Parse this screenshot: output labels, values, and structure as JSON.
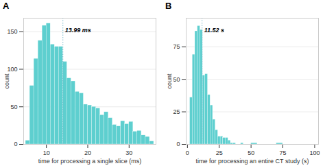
{
  "chart_data": [
    {
      "type": "histogram",
      "title": "A",
      "xlabel": "time for processing a single slice (ms)",
      "ylabel": "count",
      "bins": [
        5.0,
        6.0,
        7.0,
        8.0,
        9.0,
        10.0,
        11.0,
        12.0,
        13.0,
        14.0,
        15.0,
        16.0,
        17.0,
        18.0,
        19.0,
        20.0,
        21.0,
        22.0,
        23.0,
        24.0,
        25.0,
        26.0,
        27.0,
        28.0,
        29.0,
        30.0,
        31.0,
        32.0,
        33.0,
        34.0,
        35.0,
        36.0
      ],
      "values": [
        5,
        78,
        114,
        138,
        158,
        161,
        133,
        130,
        130,
        110,
        88,
        84,
        70,
        68,
        53,
        52,
        50,
        48,
        39,
        43,
        35,
        26,
        24,
        31,
        27,
        30,
        17,
        18,
        12,
        10,
        4
      ],
      "color": "#5ECFCF",
      "xlim": [
        4.5,
        36.5
      ],
      "ylim": [
        0,
        168
      ],
      "xticks": [
        10,
        20,
        30
      ],
      "yticks": [
        0,
        50,
        100,
        150
      ],
      "grid": true,
      "annotations": [
        {
          "x": 13.99,
          "text": "13.99 ms",
          "color": "#7BBCCC"
        }
      ]
    },
    {
      "type": "histogram",
      "title": "B",
      "xlabel": "time for processing an entire CT study (s)",
      "ylabel": "count",
      "bins": [
        0,
        2,
        4,
        6,
        8,
        10,
        12,
        14,
        16,
        18,
        20,
        22,
        24,
        26,
        28,
        30,
        32,
        34,
        36,
        38,
        40,
        42,
        44,
        46,
        48,
        50,
        55,
        60,
        65,
        70,
        75,
        80,
        85,
        90,
        95,
        100
      ],
      "values": [
        0,
        36,
        69,
        87,
        91,
        88,
        53,
        54,
        38,
        30,
        19,
        11,
        6,
        6,
        5,
        5,
        3,
        1,
        1,
        0,
        0,
        1,
        0,
        0,
        0,
        1,
        0,
        0,
        0,
        1,
        0,
        0,
        0,
        0,
        0
      ],
      "color": "#5ECFCF",
      "xlim": [
        -1,
        103
      ],
      "ylim": [
        0,
        97
      ],
      "xticks": [
        0,
        25,
        50,
        75,
        100
      ],
      "yticks": [
        0,
        25,
        50,
        75
      ],
      "grid": true,
      "annotations": [
        {
          "x": 11.52,
          "text": "11.52 s",
          "color": "#7BBCCC"
        }
      ]
    }
  ]
}
